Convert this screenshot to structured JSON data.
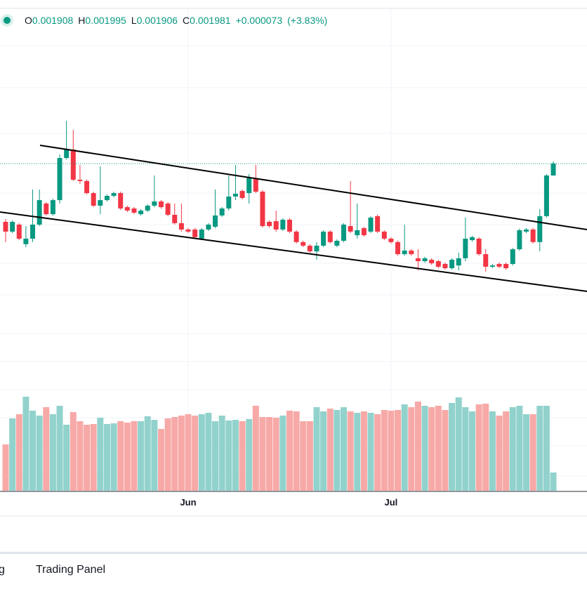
{
  "chart_data": {
    "type": "candlestick",
    "categories": [
      null,
      null,
      null,
      null,
      null,
      null,
      null,
      null,
      null,
      null,
      null,
      null,
      null,
      null,
      null,
      null,
      null,
      null,
      null,
      null,
      null,
      null,
      null,
      null,
      null,
      null,
      null,
      "Jun",
      null,
      null,
      null,
      null,
      null,
      null,
      null,
      null,
      null,
      null,
      null,
      null,
      null,
      null,
      null,
      null,
      null,
      null,
      null,
      null,
      null,
      null,
      null,
      null,
      null,
      null,
      null,
      null,
      null,
      "Jul",
      null,
      null,
      null,
      null,
      null,
      null,
      null,
      null,
      null,
      null,
      null,
      null,
      null,
      null,
      null,
      null,
      null,
      null,
      null,
      null,
      null,
      null,
      null,
      null
    ],
    "open": [
      0.001624,
      0.001564,
      0.001607,
      0.001487,
      0.001521,
      0.001607,
      0.001736,
      0.001671,
      0.001757,
      0.002015,
      0.002067,
      0.001882,
      0.001874,
      0.0018,
      0.001723,
      0.001757,
      0.001783,
      0.0018,
      0.001714,
      0.001706,
      0.001671,
      0.001693,
      0.001723,
      0.001749,
      0.001736,
      0.001667,
      0.001616,
      0.001577,
      0.001577,
      0.001521,
      0.001577,
      0.001594,
      0.001663,
      0.001706,
      0.001779,
      0.001813,
      0.0018,
      0.001886,
      0.001809,
      0.001624,
      0.001628,
      0.001577,
      0.001637,
      0.001564,
      0.0015,
      0.001478,
      0.001443,
      0.001478,
      0.001564,
      0.001478,
      0.001508,
      0.001598,
      0.001542,
      0.001585,
      0.001564,
      0.001659,
      0.001564,
      0.001521,
      0.0015,
      0.001426,
      0.001448,
      0.001401,
      0.001383,
      0.001392,
      0.001383,
      0.001366,
      0.00134,
      0.001357,
      0.001401,
      0.001512,
      0.001521,
      0.001426,
      0.001349,
      0.001366,
      0.001366,
      0.001366,
      0.001456,
      0.001564,
      0.001577,
      0.0015,
      0.001659,
      0.001908
    ],
    "high": [
      0.001641,
      0.001633,
      0.001616,
      0.001598,
      0.001822,
      0.001822,
      0.001745,
      0.001766,
      0.002037,
      0.002243,
      0.002187,
      0.001972,
      0.001883,
      0.001809,
      0.001964,
      0.001792,
      0.001809,
      0.001809,
      0.001723,
      0.001715,
      0.001702,
      0.001732,
      0.001908,
      0.001758,
      0.001745,
      0.001736,
      0.001736,
      0.001586,
      0.001586,
      0.001586,
      0.001616,
      0.001822,
      0.001715,
      0.001908,
      0.001972,
      0.001822,
      0.001917,
      0.001972,
      0.001818,
      0.001633,
      0.001693,
      0.001646,
      0.001646,
      0.001573,
      0.001509,
      0.001487,
      0.0015,
      0.001573,
      0.001573,
      0.001517,
      0.001616,
      0.001874,
      0.001736,
      0.001594,
      0.001659,
      0.001668,
      0.001573,
      0.00153,
      0.001509,
      0.001607,
      0.001457,
      0.001456,
      0.00141,
      0.001401,
      0.001392,
      0.001375,
      0.001401,
      0.001435,
      0.00165,
      0.001539,
      0.00153,
      0.001456,
      0.001366,
      0.001375,
      0.001375,
      0.001465,
      0.001582,
      0.001586,
      0.001586,
      0.001702,
      0.001917,
      0.001995
    ],
    "low": [
      0.0015,
      0.001555,
      0.001512,
      0.001469,
      0.0015,
      0.001598,
      0.001662,
      0.001662,
      0.001736,
      0.002006,
      0.001874,
      0.001856,
      0.001791,
      0.001714,
      0.001671,
      0.001748,
      0.001774,
      0.001697,
      0.001684,
      0.001671,
      0.001662,
      0.001684,
      0.001714,
      0.001705,
      0.001658,
      0.001607,
      0.001564,
      0.001555,
      0.001521,
      0.001512,
      0.001568,
      0.001585,
      0.001654,
      0.001693,
      0.001757,
      0.001761,
      0.001736,
      0.0018,
      0.001589,
      0.001589,
      0.001564,
      0.001568,
      0.001555,
      0.001491,
      0.001469,
      0.001435,
      0.001392,
      0.001469,
      0.001491,
      0.001469,
      0.001499,
      0.001555,
      0.001521,
      0.001533,
      0.001555,
      0.001555,
      0.001512,
      0.001491,
      0.001417,
      0.001417,
      0.001417,
      0.001327,
      0.001374,
      0.001361,
      0.00134,
      0.001331,
      0.001331,
      0.001327,
      0.001383,
      0.001503,
      0.001417,
      0.001319,
      0.00134,
      0.00134,
      0.001331,
      0.001357,
      0.001447,
      0.001555,
      0.001491,
      0.001443,
      0.00165,
      0.001906
    ],
    "close": [
      0.001564,
      0.001624,
      0.001521,
      0.001521,
      0.001607,
      0.001757,
      0.001671,
      0.001757,
      0.002015,
      0.002067,
      0.001882,
      0.001874,
      0.0018,
      0.001723,
      0.001757,
      0.001783,
      0.0018,
      0.001706,
      0.001693,
      0.00168,
      0.001693,
      0.001723,
      0.001749,
      0.001714,
      0.001667,
      0.001616,
      0.001577,
      0.001564,
      0.00153,
      0.001577,
      0.001607,
      0.001663,
      0.001706,
      0.001779,
      0.001796,
      0.00177,
      0.001895,
      0.001809,
      0.001598,
      0.001598,
      0.001577,
      0.001637,
      0.001564,
      0.0015,
      0.001478,
      0.001443,
      0.001478,
      0.001564,
      0.0015,
      0.001508,
      0.001607,
      0.001564,
      0.001573,
      0.001542,
      0.00165,
      0.001564,
      0.001521,
      0.0015,
      0.001426,
      0.001448,
      0.001426,
      0.001383,
      0.001401,
      0.00137,
      0.001349,
      0.00134,
      0.001392,
      0.001401,
      0.001521,
      0.00153,
      0.001426,
      0.001349,
      0.001357,
      0.001349,
      0.00134,
      0.001456,
      0.001573,
      0.001577,
      0.0015,
      0.001659,
      0.001908,
      0.001981
    ],
    "volume": [
      66,
      103,
      109,
      134,
      114,
      107,
      119,
      109,
      121,
      94,
      112,
      99,
      94,
      95,
      104,
      95,
      96,
      99,
      97,
      99,
      99,
      106,
      101,
      88,
      103,
      105,
      107,
      109,
      107,
      109,
      111,
      99,
      107,
      100,
      101,
      99,
      102,
      121,
      105,
      105,
      104,
      107,
      114,
      113,
      99,
      99,
      119,
      113,
      117,
      115,
      119,
      113,
      111,
      113,
      111,
      109,
      115,
      114,
      115,
      123,
      119,
      127,
      121,
      119,
      121,
      115,
      125,
      133,
      119,
      113,
      123,
      124,
      113,
      107,
      113,
      119,
      121,
      109,
      109,
      121,
      121,
      26
    ],
    "ylim": [
      0.001,
      0.003
    ],
    "volume_lim": [
      0,
      200
    ],
    "up_color": "#089981",
    "down_color": "#f23645",
    "up_volume_color": "#92d2cc",
    "down_volume_color": "#f7a9a7",
    "grid": true,
    "header": {
      "open": "O",
      "high": "H",
      "low": "L",
      "close": "C"
    },
    "change": {
      "value": 7.3e-05,
      "label": "+0.000073"
    },
    "change_percent": {
      "value": 3.83,
      "label": "(+3.83%)"
    }
  },
  "tabs": [
    "g",
    "Trading Panel"
  ]
}
